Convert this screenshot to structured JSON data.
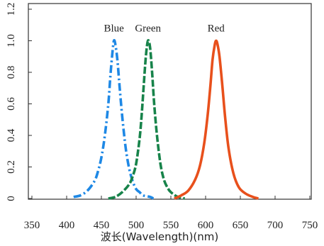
{
  "chart_data": {
    "type": "line",
    "xlabel": "波长(Wavelength)(nm)",
    "ylabel": "",
    "xlim": [
      350,
      750
    ],
    "ylim": [
      0,
      1.2
    ],
    "x_ticks": [
      350,
      400,
      450,
      500,
      550,
      600,
      650,
      700,
      750
    ],
    "y_ticks": [
      0,
      0.2,
      0.4,
      0.6,
      0.8,
      1.0,
      1.2
    ],
    "x_tick_labels": [
      "350",
      "400",
      "450",
      "500",
      "550",
      "600",
      "650",
      "700",
      "750"
    ],
    "y_tick_labels": [
      "0",
      "0.2",
      "0.4",
      "0.6",
      "0.8",
      "1.0",
      "1.2"
    ],
    "grid": false,
    "legend": "none",
    "series": [
      {
        "name": "Blue",
        "color": "#1e88e5",
        "style": "dash-dot",
        "x": [
          410,
          420,
          430,
          440,
          445,
          450,
          455,
          460,
          463,
          466,
          468,
          470,
          473,
          476,
          480,
          485,
          490,
          495,
          500,
          505,
          510,
          520,
          525
        ],
        "values": [
          0.01,
          0.02,
          0.05,
          0.11,
          0.17,
          0.26,
          0.4,
          0.6,
          0.78,
          0.93,
          1.0,
          0.98,
          0.88,
          0.72,
          0.52,
          0.32,
          0.19,
          0.11,
          0.06,
          0.04,
          0.02,
          0.01,
          0.0
        ]
      },
      {
        "name": "Green",
        "color": "#17834a",
        "style": "long-dash",
        "x": [
          460,
          470,
          480,
          490,
          495,
          500,
          505,
          508,
          511,
          514,
          517,
          520,
          523,
          526,
          530,
          535,
          540,
          545,
          550,
          560,
          570
        ],
        "values": [
          0.0,
          0.01,
          0.04,
          0.09,
          0.14,
          0.22,
          0.38,
          0.53,
          0.72,
          0.9,
          1.0,
          0.96,
          0.8,
          0.6,
          0.4,
          0.22,
          0.12,
          0.07,
          0.04,
          0.01,
          0.0
        ]
      },
      {
        "name": "Red",
        "color": "#e8501c",
        "style": "solid",
        "x": [
          555,
          565,
          575,
          585,
          592,
          598,
          603,
          607,
          610,
          613,
          615,
          617,
          620,
          624,
          628,
          633,
          640,
          648,
          658,
          668,
          676
        ],
        "values": [
          0.0,
          0.02,
          0.05,
          0.12,
          0.21,
          0.35,
          0.53,
          0.72,
          0.88,
          0.97,
          1.0,
          0.98,
          0.9,
          0.72,
          0.52,
          0.32,
          0.16,
          0.07,
          0.03,
          0.01,
          0.0
        ]
      }
    ]
  }
}
